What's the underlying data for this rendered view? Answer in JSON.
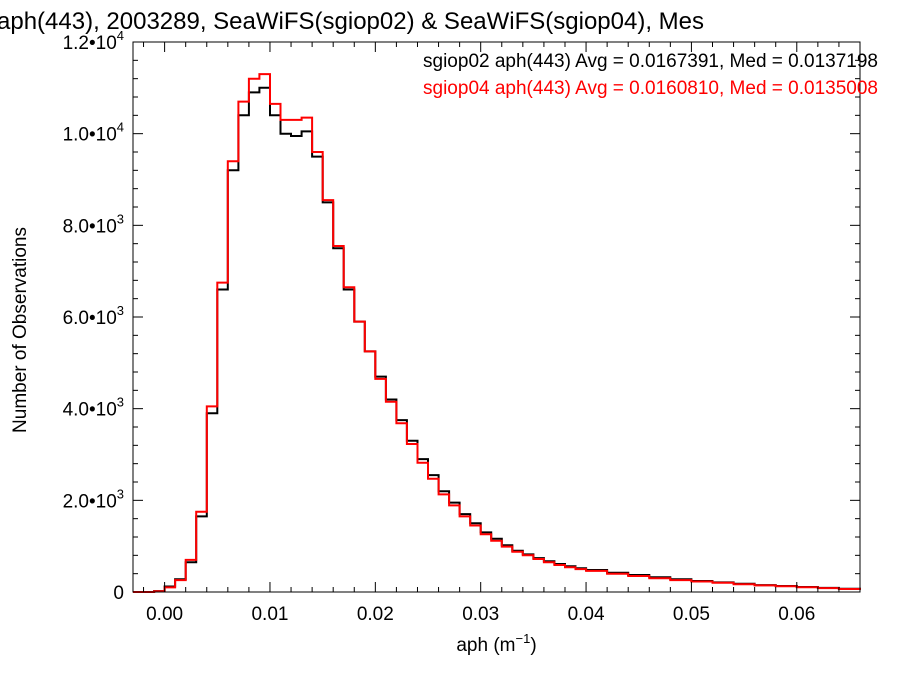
{
  "chart_data": {
    "type": "line",
    "step": true,
    "title": "aph(443), 2003289, SeaWiFS(sgiop02) & SeaWiFS(sgiop04), Mes",
    "xlabel": "aph (m",
    "xlabel_sup": "−1",
    "xlabel_tail": ")",
    "ylabel": "Number of Observations",
    "xlim": [
      -0.003,
      0.066
    ],
    "ylim": [
      0,
      12000
    ],
    "x_ticks": [
      {
        "value": 0.0,
        "label": "0.00"
      },
      {
        "value": 0.01,
        "label": "0.01"
      },
      {
        "value": 0.02,
        "label": "0.02"
      },
      {
        "value": 0.03,
        "label": "0.03"
      },
      {
        "value": 0.04,
        "label": "0.04"
      },
      {
        "value": 0.05,
        "label": "0.05"
      },
      {
        "value": 0.06,
        "label": "0.06"
      }
    ],
    "y_ticks": [
      {
        "value": 0,
        "mant": "0",
        "exp": ""
      },
      {
        "value": 2000,
        "mant": "2.0•10",
        "exp": "3"
      },
      {
        "value": 4000,
        "mant": "4.0•10",
        "exp": "3"
      },
      {
        "value": 6000,
        "mant": "6.0•10",
        "exp": "3"
      },
      {
        "value": 8000,
        "mant": "8.0•10",
        "exp": "3"
      },
      {
        "value": 10000,
        "mant": "1.0•10",
        "exp": "4"
      },
      {
        "value": 12000,
        "mant": "1.2•10",
        "exp": "4"
      }
    ],
    "grid": false,
    "legend_position": "top-right",
    "series": [
      {
        "name": "sgiop02 aph(443) Avg = 0.0167391, Med = 0.0137198",
        "color": "#000000",
        "x": [
          -0.003,
          -0.002,
          -0.001,
          0.0,
          0.001,
          0.002,
          0.003,
          0.004,
          0.005,
          0.006,
          0.007,
          0.008,
          0.009,
          0.01,
          0.011,
          0.012,
          0.013,
          0.014,
          0.015,
          0.016,
          0.017,
          0.018,
          0.019,
          0.02,
          0.021,
          0.022,
          0.023,
          0.024,
          0.025,
          0.026,
          0.027,
          0.028,
          0.029,
          0.03,
          0.031,
          0.032,
          0.033,
          0.034,
          0.035,
          0.036,
          0.037,
          0.038,
          0.039,
          0.04,
          0.042,
          0.044,
          0.046,
          0.048,
          0.05,
          0.052,
          0.054,
          0.056,
          0.058,
          0.06,
          0.062,
          0.064,
          0.066
        ],
        "y": [
          0,
          0,
          20,
          120,
          280,
          650,
          1650,
          3900,
          6600,
          9200,
          10400,
          10900,
          11000,
          10400,
          10000,
          9950,
          10050,
          9500,
          8500,
          7500,
          6600,
          5900,
          5250,
          4700,
          4200,
          3750,
          3300,
          2900,
          2550,
          2200,
          1950,
          1700,
          1500,
          1300,
          1160,
          1020,
          900,
          820,
          740,
          670,
          610,
          560,
          520,
          480,
          420,
          370,
          320,
          280,
          240,
          210,
          180,
          150,
          130,
          110,
          90,
          70,
          50
        ]
      },
      {
        "name": "sgiop04 aph(443) Avg = 0.0160810, Med = 0.0135008",
        "color": "#ff0000",
        "x": [
          -0.003,
          -0.002,
          -0.001,
          0.0,
          0.001,
          0.002,
          0.003,
          0.004,
          0.005,
          0.006,
          0.007,
          0.008,
          0.009,
          0.01,
          0.011,
          0.012,
          0.013,
          0.014,
          0.015,
          0.016,
          0.017,
          0.018,
          0.019,
          0.02,
          0.021,
          0.022,
          0.023,
          0.024,
          0.025,
          0.026,
          0.027,
          0.028,
          0.029,
          0.03,
          0.031,
          0.032,
          0.033,
          0.034,
          0.035,
          0.036,
          0.037,
          0.038,
          0.039,
          0.04,
          0.042,
          0.044,
          0.046,
          0.048,
          0.05,
          0.052,
          0.054,
          0.056,
          0.058,
          0.06,
          0.062,
          0.064,
          0.066
        ],
        "y": [
          0,
          0,
          15,
          100,
          260,
          700,
          1750,
          4050,
          6750,
          9400,
          10700,
          11200,
          11300,
          10650,
          10300,
          10300,
          10350,
          9600,
          8550,
          7550,
          6650,
          5900,
          5250,
          4650,
          4150,
          3680,
          3230,
          2820,
          2470,
          2130,
          1890,
          1650,
          1450,
          1260,
          1120,
          990,
          880,
          800,
          720,
          650,
          590,
          540,
          500,
          460,
          400,
          350,
          300,
          260,
          230,
          200,
          170,
          145,
          125,
          105,
          85,
          65,
          45
        ]
      }
    ]
  }
}
